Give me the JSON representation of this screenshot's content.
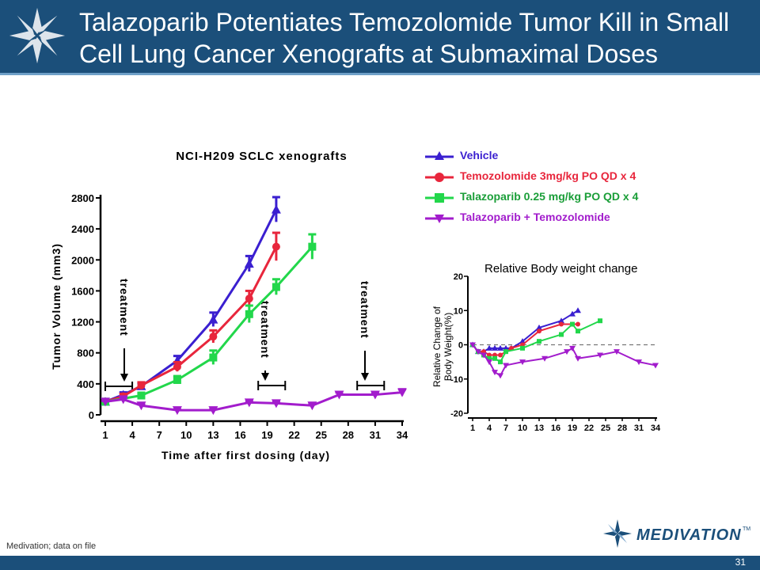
{
  "header": {
    "title": "Talazoparib Potentiates Temozolomide Tumor Kill in Small Cell Lung Cancer Xenografts at Submaximal Doses"
  },
  "footer": {
    "source": "Medivation; data on file",
    "page_number": "31",
    "brand": "MEDIVATION",
    "brand_tm": "TM"
  },
  "colors": {
    "header": "#1b4f7a",
    "vehicle": "#3a1fd0",
    "temozolomide": "#e8263c",
    "talazoparib": "#22d74b",
    "combo": "#a21ccc"
  },
  "legend": [
    {
      "label": "Vehicle",
      "color": "#3a1fd0",
      "marker": "triangle-up"
    },
    {
      "label": "Temozolomide 3mg/kg PO QD x 4",
      "color": "#e8263c",
      "marker": "circle"
    },
    {
      "label": "Talazoparib 0.25 mg/kg PO QD x 4",
      "color": "#22d74b",
      "marker": "square"
    },
    {
      "label": "Talazoparib + Temozolomide",
      "color": "#a21ccc",
      "marker": "triangle-down"
    }
  ],
  "chart_data": [
    {
      "type": "line",
      "title": "NCI-H209 SCLC xenografts",
      "xlabel": "Time after first dosing (day)",
      "ylabel": "Tumor Volume (mm3)",
      "xlim": [
        1,
        34
      ],
      "ylim": [
        0,
        2800
      ],
      "xticks": [
        1,
        4,
        7,
        10,
        13,
        16,
        19,
        22,
        25,
        28,
        31,
        34
      ],
      "yticks": [
        0,
        400,
        800,
        1200,
        1600,
        2000,
        2400,
        2800
      ],
      "annotations": [
        {
          "text": "treatment",
          "x_range": [
            1,
            4
          ]
        },
        {
          "text": "treatment",
          "x_range": [
            18,
            21
          ]
        },
        {
          "text": "treatment",
          "x_range": [
            29,
            32
          ]
        }
      ],
      "series": [
        {
          "name": "Vehicle",
          "color": "#3a1fd0",
          "marker": "triangle-up",
          "x": [
            1,
            3,
            5,
            9,
            13,
            17,
            20
          ],
          "y": [
            170,
            260,
            370,
            700,
            1230,
            1950,
            2650
          ],
          "err": [
            20,
            30,
            40,
            60,
            90,
            100,
            160
          ]
        },
        {
          "name": "Temozolomide 3mg/kg PO QD x 4",
          "color": "#e8263c",
          "marker": "circle",
          "x": [
            1,
            3,
            5,
            9,
            13,
            17,
            20
          ],
          "y": [
            170,
            240,
            380,
            620,
            1010,
            1500,
            2170
          ],
          "err": [
            20,
            30,
            40,
            60,
            80,
            100,
            180
          ]
        },
        {
          "name": "Talazoparib 0.25 mg/kg PO QD x 4",
          "color": "#22d74b",
          "marker": "square",
          "x": [
            1,
            5,
            9,
            13,
            17,
            20,
            24
          ],
          "y": [
            170,
            250,
            450,
            740,
            1300,
            1650,
            2170
          ],
          "err": [
            20,
            30,
            50,
            90,
            110,
            100,
            160
          ]
        },
        {
          "name": "Talazoparib + Temozolomide",
          "color": "#a21ccc",
          "marker": "triangle-down",
          "x": [
            1,
            3,
            5,
            9,
            13,
            17,
            20,
            24,
            27,
            31,
            34
          ],
          "y": [
            170,
            200,
            120,
            60,
            60,
            160,
            150,
            120,
            260,
            260,
            290
          ],
          "err": [
            10,
            20,
            15,
            10,
            15,
            20,
            20,
            20,
            30,
            30,
            40
          ]
        }
      ]
    },
    {
      "type": "line",
      "title": "Relative Body weight change",
      "xlabel": "",
      "ylabel": "Relative Change of Body Weight(%)",
      "xlim": [
        1,
        34
      ],
      "ylim": [
        -20,
        20
      ],
      "xticks": [
        1,
        4,
        7,
        10,
        13,
        16,
        19,
        22,
        25,
        28,
        31,
        34
      ],
      "yticks": [
        -20,
        -10,
        0,
        10,
        20
      ],
      "baseline": 0,
      "series": [
        {
          "name": "Vehicle",
          "color": "#3a1fd0",
          "marker": "triangle-up",
          "x": [
            1,
            2,
            3,
            4,
            5,
            6,
            7,
            8,
            10,
            13,
            17,
            19,
            20
          ],
          "y": [
            0,
            -2,
            -2,
            -1,
            -1,
            -1,
            -1,
            -1,
            1,
            5,
            7,
            9,
            10
          ]
        },
        {
          "name": "Temozolomide 3mg/kg PO QD x 4",
          "color": "#e8263c",
          "marker": "circle",
          "x": [
            1,
            2,
            3,
            4,
            5,
            6,
            7,
            8,
            10,
            13,
            17,
            19,
            20
          ],
          "y": [
            0,
            -2,
            -2,
            -3,
            -3,
            -3,
            -2,
            -1,
            0,
            4,
            6,
            6,
            6
          ]
        },
        {
          "name": "Talazoparib 0.25 mg/kg PO QD x 4",
          "color": "#22d74b",
          "marker": "square",
          "x": [
            1,
            2,
            3,
            4,
            5,
            6,
            7,
            10,
            13,
            17,
            19,
            20,
            24
          ],
          "y": [
            0,
            -2,
            -3,
            -4,
            -4,
            -5,
            -2,
            -1,
            1,
            3,
            6,
            4,
            7
          ]
        },
        {
          "name": "Talazoparib + Temozolomide",
          "color": "#a21ccc",
          "marker": "triangle-down",
          "x": [
            1,
            2,
            3,
            4,
            5,
            6,
            7,
            10,
            14,
            18,
            19,
            20,
            24,
            27,
            31,
            34
          ],
          "y": [
            0,
            -2,
            -3,
            -5,
            -8,
            -9,
            -6,
            -5,
            -4,
            -2,
            -1,
            -4,
            -3,
            -2,
            -5,
            -6
          ]
        }
      ]
    }
  ]
}
